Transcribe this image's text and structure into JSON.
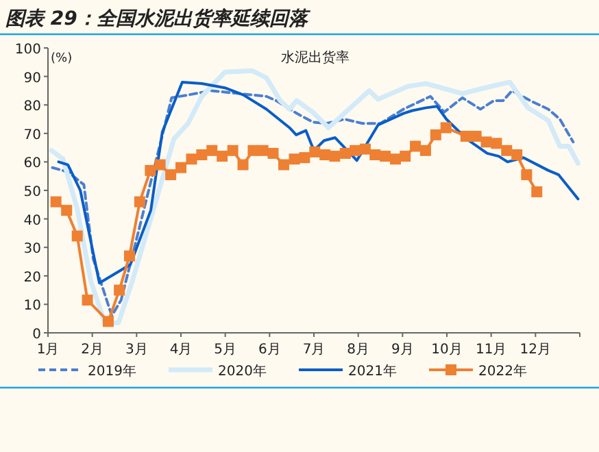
{
  "chart_data": {
    "type": "line",
    "title": "图表 29：全国水泥出货率延续回落",
    "ylabel": "(%)",
    "annotations": [
      "水泥出货率"
    ],
    "xlim": [
      1,
      13
    ],
    "xticks": [
      {
        "value": 1,
        "label": "1月"
      },
      {
        "value": 2,
        "label": "2月"
      },
      {
        "value": 3,
        "label": "3月"
      },
      {
        "value": 4,
        "label": "4月"
      },
      {
        "value": 5,
        "label": "5月"
      },
      {
        "value": 6,
        "label": "6月"
      },
      {
        "value": 7,
        "label": "7月"
      },
      {
        "value": 8,
        "label": "8月"
      },
      {
        "value": 9,
        "label": "9月"
      },
      {
        "value": 10,
        "label": "10月"
      },
      {
        "value": 11,
        "label": "11月"
      },
      {
        "value": 12,
        "label": "12月"
      }
    ],
    "ylim": [
      0,
      100
    ],
    "yticks": [
      0,
      10,
      20,
      30,
      40,
      50,
      60,
      70,
      80,
      90,
      100
    ],
    "grid": false,
    "legend": "bottom",
    "series": [
      {
        "name": "2019年",
        "color": "#4a7fd0",
        "line_style": "dashed",
        "marker": "none",
        "x": [
          1.1,
          1.45,
          1.81,
          2.02,
          2.44,
          2.65,
          2.96,
          3.32,
          3.79,
          4.16,
          4.68,
          5.3,
          5.93,
          6.15,
          6.56,
          6.97,
          7.28,
          7.69,
          8.1,
          8.5,
          9.02,
          9.63,
          9.94,
          10.35,
          10.76,
          11.06,
          11.27,
          11.47,
          11.88,
          12.29,
          12.55,
          12.85
        ],
        "values": [
          58,
          56.5,
          52,
          26,
          6,
          11.5,
          30.5,
          53,
          82.5,
          83.5,
          85,
          84,
          83,
          81.5,
          77.5,
          74,
          73.5,
          75,
          73.5,
          73.5,
          78.5,
          83,
          77.5,
          82.5,
          78.5,
          81.5,
          81.5,
          85,
          81.5,
          78.5,
          75,
          67
        ]
      },
      {
        "name": "2020年",
        "color": "#d3eaf8",
        "line_style": "solid",
        "marker": "none",
        "x": [
          1.08,
          1.34,
          1.66,
          1.97,
          2.28,
          2.59,
          2.9,
          3.32,
          3.84,
          4.16,
          4.47,
          4.99,
          5.61,
          5.93,
          6.24,
          6.45,
          6.61,
          6.97,
          7.33,
          7.79,
          8.25,
          8.45,
          9.12,
          9.53,
          10.35,
          10.86,
          11.42,
          11.83,
          12.29,
          12.55,
          12.75,
          12.96
        ],
        "values": [
          64,
          61,
          43.5,
          18,
          3.5,
          3.5,
          18,
          40,
          68,
          73.5,
          83,
          91.5,
          92,
          89.5,
          81.5,
          78.5,
          81.5,
          77.5,
          72,
          78.5,
          85,
          82,
          86.5,
          87.5,
          84,
          86,
          88,
          79,
          74.5,
          65.5,
          65.5,
          59.5
        ]
      },
      {
        "name": "2021年",
        "color": "#0a5ec7",
        "line_style": "solid",
        "marker": "none",
        "x": [
          1.24,
          1.45,
          1.73,
          2.16,
          2.86,
          3.32,
          3.58,
          4.03,
          4.47,
          4.99,
          5.41,
          5.93,
          6.45,
          6.6,
          6.82,
          7.0,
          7.23,
          7.48,
          7.97,
          8.45,
          9.02,
          9.22,
          9.53,
          9.78,
          9.99,
          10.45,
          10.91,
          11.17,
          11.37,
          11.73,
          12.29,
          12.52,
          12.96
        ],
        "values": [
          60,
          59,
          50,
          17.5,
          24,
          43,
          70.5,
          88,
          87.5,
          86,
          83.5,
          78.5,
          72,
          69.5,
          71,
          64,
          67.5,
          68.5,
          60.5,
          73,
          77,
          78,
          79,
          79.5,
          75,
          68,
          63,
          62,
          60,
          61.5,
          57,
          55.5,
          47
        ]
      },
      {
        "name": "2022年",
        "color": "#ee8033",
        "line_style": "solid",
        "marker": "square",
        "x": [
          1.18,
          1.42,
          1.66,
          1.89,
          2.36,
          2.61,
          2.84,
          3.07,
          3.31,
          3.53,
          3.77,
          4.0,
          4.24,
          4.47,
          4.7,
          4.93,
          5.17,
          5.4,
          5.63,
          5.85,
          6.08,
          6.32,
          6.56,
          6.79,
          7.02,
          7.25,
          7.47,
          7.71,
          7.93,
          8.16,
          8.38,
          8.61,
          8.84,
          9.06,
          9.29,
          9.52,
          9.75,
          9.98,
          10.43,
          10.66,
          10.89,
          11.12,
          11.35,
          11.58,
          11.8,
          12.03
        ],
        "values": [
          46,
          43,
          34,
          11.5,
          4,
          15,
          27,
          46,
          57,
          59,
          55.5,
          58,
          61,
          62.5,
          64,
          62,
          64,
          59,
          64,
          64,
          63,
          59,
          61,
          61.5,
          63.5,
          62.5,
          62,
          63,
          64,
          64.5,
          62.5,
          62,
          61,
          62,
          65.5,
          64,
          69.5,
          72,
          69,
          69,
          67,
          66.5,
          64,
          62.5,
          55.5,
          49.5
        ]
      }
    ]
  }
}
